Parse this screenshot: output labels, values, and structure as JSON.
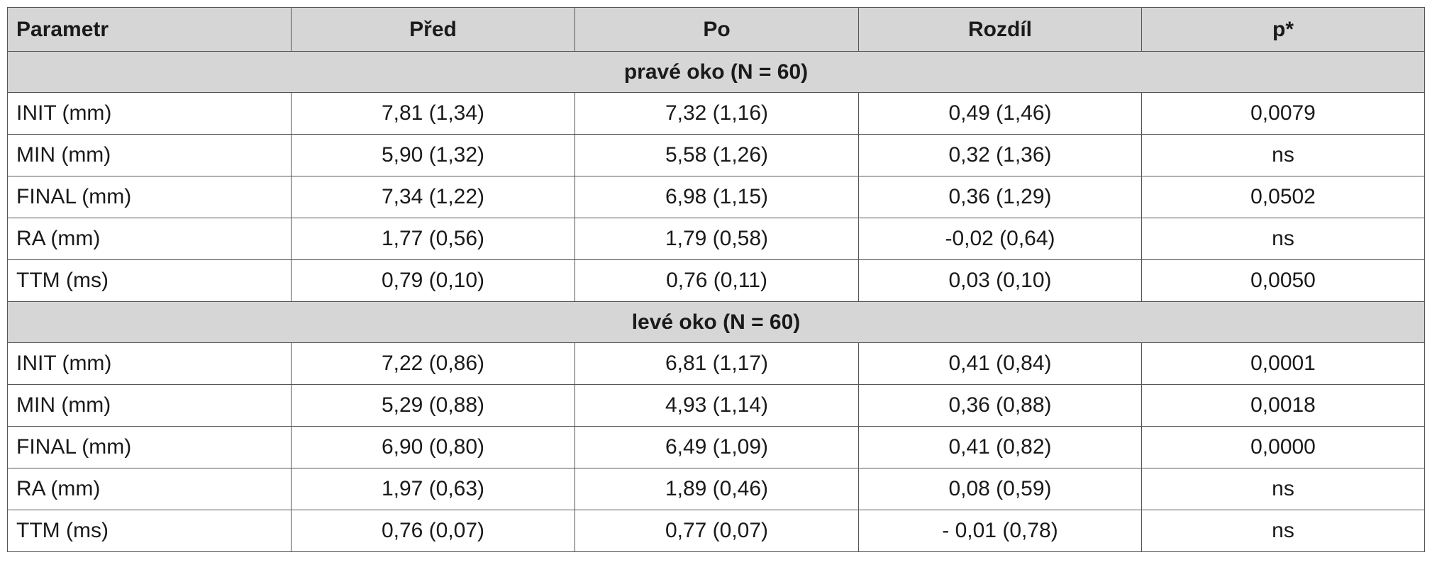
{
  "headers": [
    "Parametr",
    "Před",
    "Po",
    "Rozdíl",
    "p*"
  ],
  "sections": [
    {
      "title": "pravé oko (N = 60)",
      "rows": [
        {
          "param": "INIT (mm)",
          "pred": "7,81 (1,34)",
          "po": "7,32 (1,16)",
          "rozdil": "0,49 (1,46)",
          "p": "0,0079"
        },
        {
          "param": "MIN (mm)",
          "pred": "5,90 (1,32)",
          "po": "5,58 (1,26)",
          "rozdil": "0,32 (1,36)",
          "p": "ns"
        },
        {
          "param": "FINAL (mm)",
          "pred": "7,34 (1,22)",
          "po": "6,98 (1,15)",
          "rozdil": "0,36 (1,29)",
          "p": "0,0502"
        },
        {
          "param": "RA (mm)",
          "pred": "1,77 (0,56)",
          "po": "1,79 (0,58)",
          "rozdil": "-0,02 (0,64)",
          "p": "ns"
        },
        {
          "param": "TTM (ms)",
          "pred": "0,79 (0,10)",
          "po": "0,76 (0,11)",
          "rozdil": "0,03 (0,10)",
          "p": "0,0050"
        }
      ]
    },
    {
      "title": "levé oko (N = 60)",
      "rows": [
        {
          "param": "INIT (mm)",
          "pred": "7,22 (0,86)",
          "po": "6,81 (1,17)",
          "rozdil": "0,41 (0,84)",
          "p": "0,0001"
        },
        {
          "param": "MIN (mm)",
          "pred": "5,29 (0,88)",
          "po": "4,93 (1,14)",
          "rozdil": "0,36 (0,88)",
          "p": "0,0018"
        },
        {
          "param": "FINAL (mm)",
          "pred": "6,90 (0,80)",
          "po": "6,49 (1,09)",
          "rozdil": "0,41 (0,82)",
          "p": "0,0000"
        },
        {
          "param": "RA (mm)",
          "pred": "1,97 (0,63)",
          "po": "1,89 (0,46)",
          "rozdil": "0,08 (0,59)",
          "p": "ns"
        },
        {
          "param": "TTM (ms)",
          "pred": "0,76 (0,07)",
          "po": "0,77 (0,07)",
          "rozdil": "- 0,01 (0,78)",
          "p": "ns"
        }
      ]
    }
  ]
}
